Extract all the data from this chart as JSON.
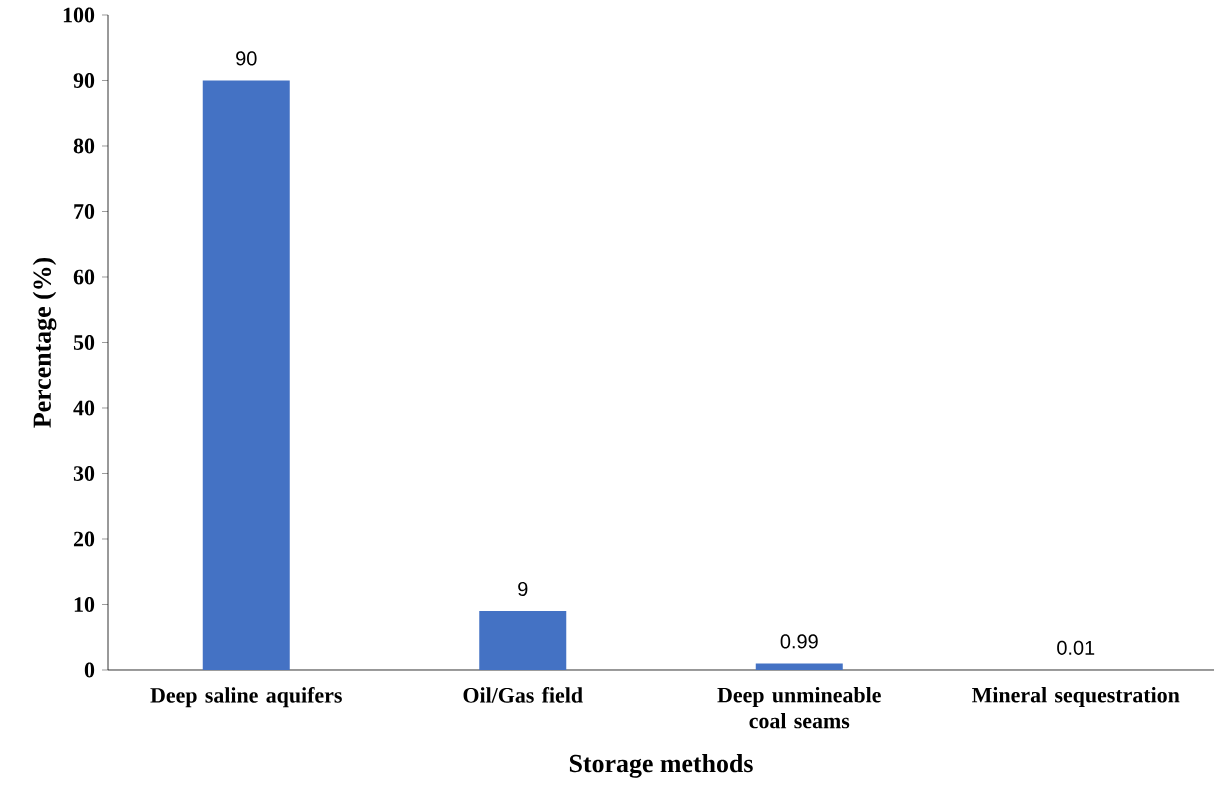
{
  "chart_data": {
    "type": "bar",
    "xlabel": "Storage methods",
    "ylabel": "Percentage (%)",
    "categories": [
      "Deep saline aquifers",
      "Oil/Gas field",
      "Deep unmineable coal seams",
      "Mineral sequestration"
    ],
    "values": [
      90,
      9,
      0.99,
      0.01
    ],
    "color": "#4472c4",
    "ylim": [
      0,
      100
    ],
    "yticks": [
      0,
      10,
      20,
      30,
      40,
      50,
      60,
      70,
      80,
      90,
      100
    ],
    "data_labels": true,
    "grid": false
  }
}
